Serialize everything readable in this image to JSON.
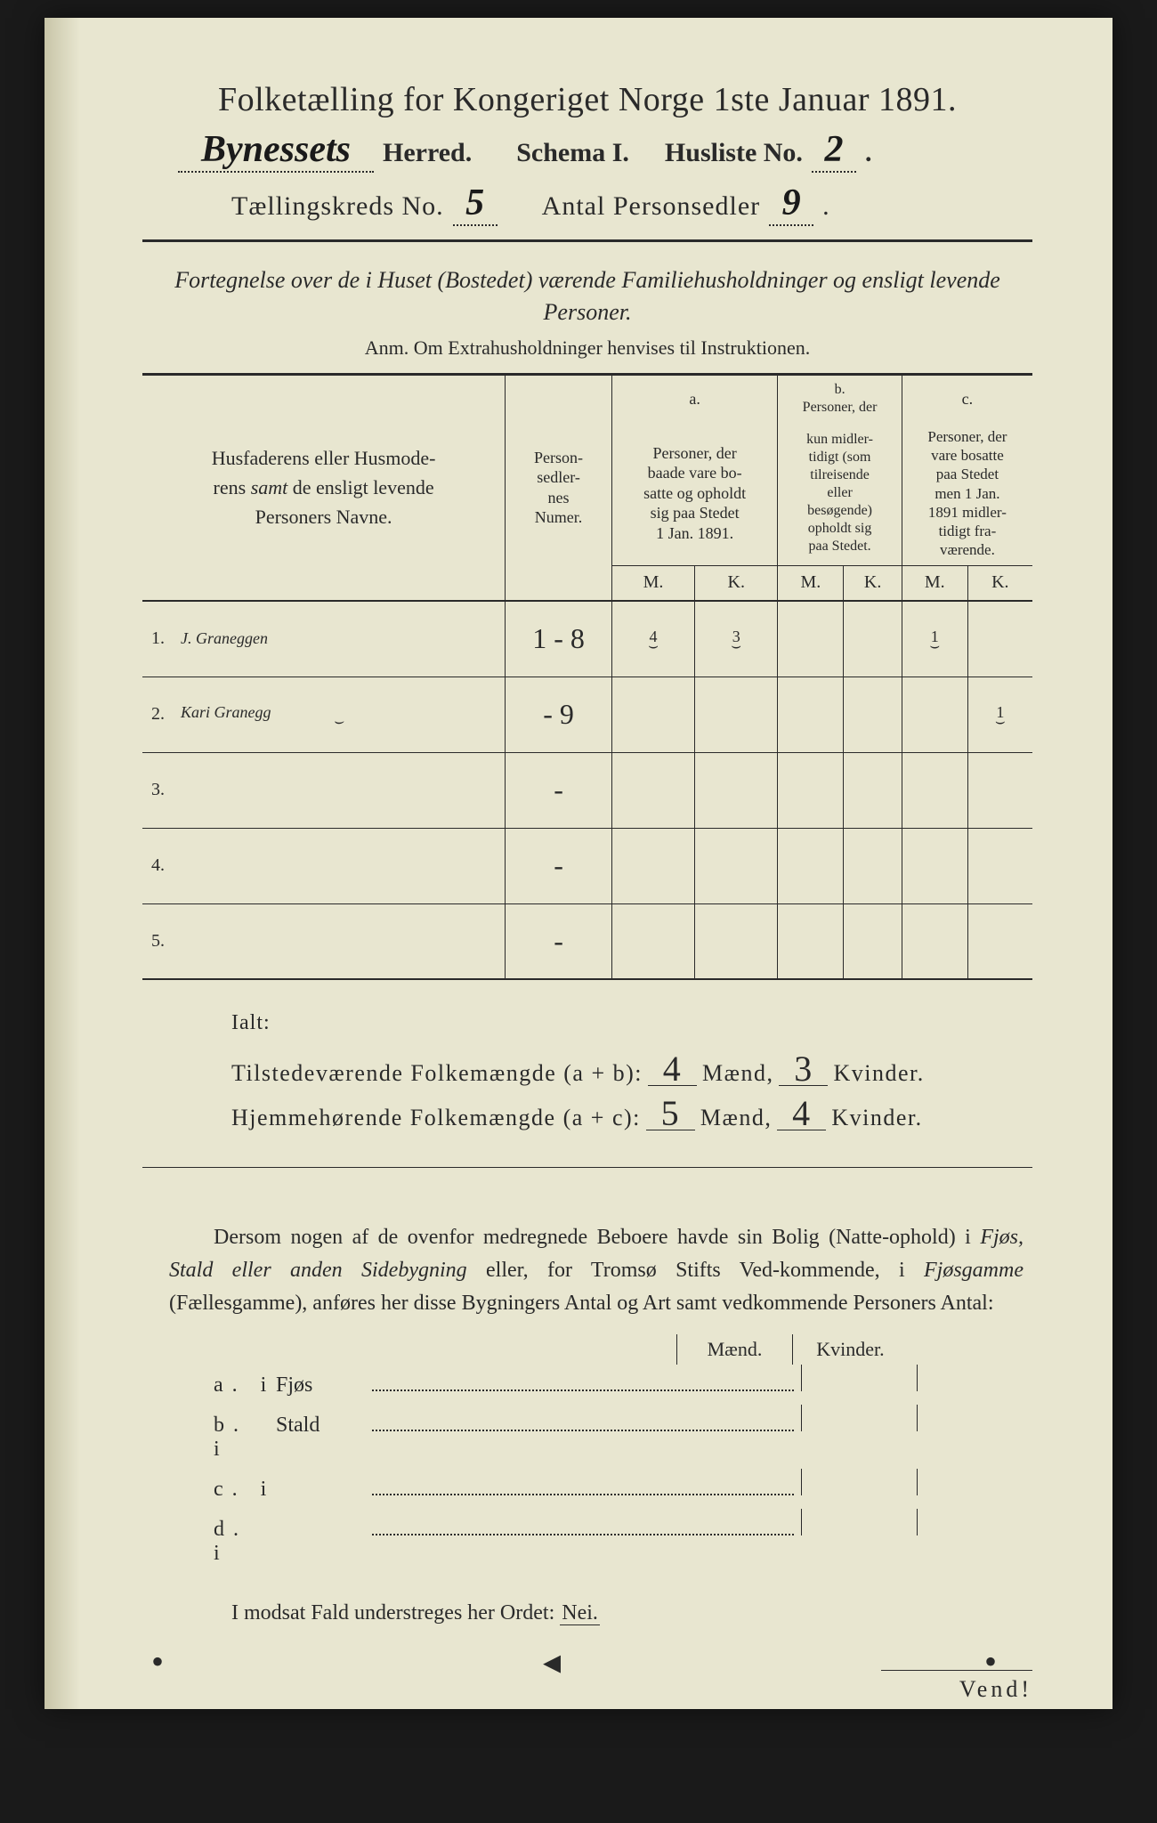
{
  "colors": {
    "paper": "#e8e6d0",
    "ink": "#2a2a2a",
    "background": "#1a1a1a"
  },
  "header": {
    "title": "Folketælling for Kongeriget Norge 1ste Januar 1891.",
    "herred_name": "Bynessets",
    "herred_label": "Herred.",
    "schema_label": "Schema I.",
    "husliste_label": "Husliste No.",
    "husliste_no": "2",
    "kreds_label": "Tællingskreds No.",
    "kreds_no": "5",
    "personsedler_label": "Antal Personsedler",
    "personsedler_no": "9"
  },
  "subtitle": {
    "line": "Fortegnelse over de i Huset (Bostedet) værende Familiehusholdninger og ensligt levende Personer.",
    "anm": "Anm.  Om Extrahusholdninger henvises til Instruktionen."
  },
  "table": {
    "col_name": "Husfaderens eller Husmoderens samt de ensligt levende Personers Navne.",
    "col_num": "Person-sedler-nes Numer.",
    "col_a_label": "a.",
    "col_a": "Personer, der baade vare bosatte og opholdt sig paa Stedet 1 Jan. 1891.",
    "col_b_label": "b.",
    "col_b": "Personer, der kun midler-tidigt (som tilreisende eller besøgende) opholdt sig paa Stedet.",
    "col_c_label": "c.",
    "col_c": "Personer, der vare bosatte paa Stedet men 1 Jan. 1891 midler-tidigt fra-værende.",
    "sub_m": "M.",
    "sub_k": "K.",
    "rows": [
      {
        "n": "1.",
        "name": "J. Graneggen",
        "num": "1 - 8",
        "a_m": "4",
        "a_k": "3",
        "b_m": "",
        "b_k": "",
        "c_m": "1",
        "c_k": ""
      },
      {
        "n": "2.",
        "name": "Kari Granegg",
        "num": "- 9",
        "a_m": "",
        "a_k": "",
        "b_m": "",
        "b_k": "",
        "c_m": "",
        "c_k": "1"
      },
      {
        "n": "3.",
        "name": "",
        "num": "-",
        "a_m": "",
        "a_k": "",
        "b_m": "",
        "b_k": "",
        "c_m": "",
        "c_k": ""
      },
      {
        "n": "4.",
        "name": "",
        "num": "-",
        "a_m": "",
        "a_k": "",
        "b_m": "",
        "b_k": "",
        "c_m": "",
        "c_k": ""
      },
      {
        "n": "5.",
        "name": "",
        "num": "-",
        "a_m": "",
        "a_k": "",
        "b_m": "",
        "b_k": "",
        "c_m": "",
        "c_k": ""
      }
    ]
  },
  "totals": {
    "ialt": "Ialt:",
    "line1_label": "Tilstedeværende Folkemængde (a + b):",
    "line1_m": "4",
    "line1_k": "3",
    "line2_label": "Hjemmehørende Folkemængde (a + c):",
    "line2_m": "5",
    "line2_k": "4",
    "maend": "Mænd,",
    "kvinder": "Kvinder."
  },
  "outbuilding": {
    "paragraph": "Dersom nogen af de ovenfor medregnede Beboere havde sin Bolig (Natteophold) i Fjøs, Stald eller anden Sidebygning eller, for Tromsø Stifts Vedkommende, i Fjøsgamme (Fællesgamme), anføres her disse Bygningers Antal og Art samt vedkommende Personers Antal:",
    "col_m": "Mænd.",
    "col_k": "Kvinder.",
    "rows": [
      {
        "lab": "a.",
        "i": "i",
        "what": "Fjøs"
      },
      {
        "lab": "b.",
        "i": "i",
        "what": "Stald"
      },
      {
        "lab": "c.",
        "i": "i",
        "what": ""
      },
      {
        "lab": "d.",
        "i": "i",
        "what": ""
      }
    ],
    "nei_line": "I modsat Fald understreges her Ordet:",
    "nei": "Nei."
  },
  "footer": {
    "vend": "Vend!"
  }
}
